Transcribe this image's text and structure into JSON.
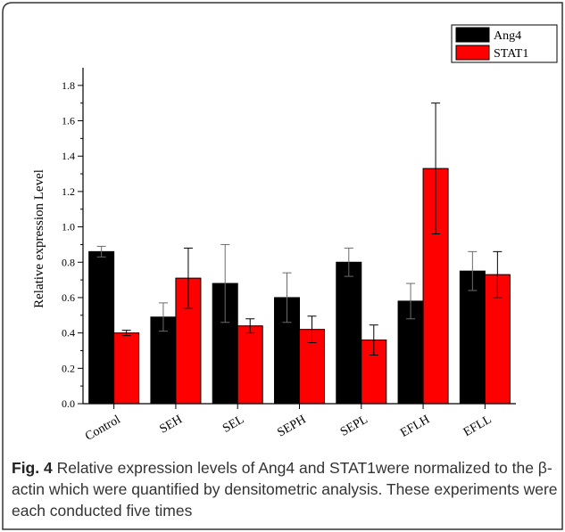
{
  "chart_data": {
    "type": "bar",
    "title": "",
    "xlabel": "",
    "ylabel": "Relative expression Level",
    "categories": [
      "Control",
      "SEH",
      "SEL",
      "SEPH",
      "SEPL",
      "EFLH",
      "EFLL"
    ],
    "ylim": [
      0.0,
      1.9
    ],
    "yticks": [
      "0.0",
      "0.2",
      "0.4",
      "0.6",
      "0.8",
      "1.0",
      "1.2",
      "1.4",
      "1.6",
      "1.8"
    ],
    "series": [
      {
        "name": "Ang4",
        "color": "#000000",
        "values": [
          0.86,
          0.49,
          0.68,
          0.6,
          0.8,
          0.58,
          0.75
        ],
        "errors": [
          0.03,
          0.08,
          0.22,
          0.14,
          0.08,
          0.1,
          0.11
        ]
      },
      {
        "name": "STAT1",
        "color": "#ff0000",
        "values": [
          0.4,
          0.71,
          0.44,
          0.42,
          0.36,
          1.33,
          0.73
        ],
        "errors": [
          0.015,
          0.17,
          0.04,
          0.075,
          0.085,
          0.37,
          0.13
        ]
      }
    ],
    "legend_position": "top-right",
    "grid": false
  },
  "caption": {
    "label": "Fig. 4",
    "text": " Relative expression levels of Ang4 and STAT1were normalized to the β-actin which were quantified by densitometric analysis. These experiments were each conducted five times"
  }
}
